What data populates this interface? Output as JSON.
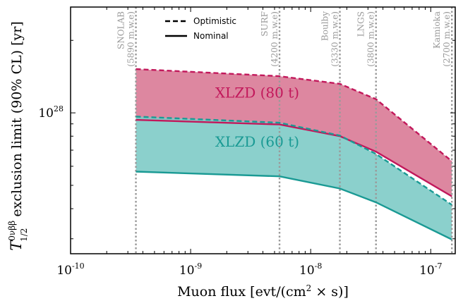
{
  "chart_data": {
    "type": "area",
    "x_scale": "log",
    "y_scale": "log",
    "xlim": [
      1e-10,
      1.6e-07
    ],
    "ylim": [
      2.6e+27,
      2.75e+28
    ],
    "xlabel_html": "Muon flux [evt/(cm<tspan baseline-shift='super' font-size='12'>2</tspan> × s)]",
    "xlabel": "Muon flux [evt/(cm2 × s)]",
    "ylabel": "exclusion limit (90% CL) [yr]",
    "ylabel_symbol": "T",
    "ylabel_sub": "1/2",
    "ylabel_sup": "0νββ",
    "x_ticks": [
      {
        "value": 1e-10,
        "base": "10",
        "exp": "-10"
      },
      {
        "value": 1e-09,
        "base": "10",
        "exp": "-9"
      },
      {
        "value": 1e-08,
        "base": "10",
        "exp": "-8"
      },
      {
        "value": 1e-07,
        "base": "10",
        "exp": "-7"
      }
    ],
    "y_ticks": [
      {
        "value": 1e+28,
        "base": "10",
        "exp": "28"
      }
    ],
    "labs": [
      {
        "name": "SNOLAB",
        "depth": "(5890 m.w.e)",
        "flux": 3.5e-10
      },
      {
        "name": "SURF",
        "depth": "(4200 m.w.e)",
        "flux": 5.5e-09
      },
      {
        "name": "Boulby",
        "depth": "(3330 m.w.e)",
        "flux": 1.75e-08
      },
      {
        "name": "LNGS",
        "depth": "(3800 m.w.e)",
        "flux": 3.5e-08
      },
      {
        "name": "Kamioka",
        "depth": "(2700 m.w.e)",
        "flux": 1.5e-07
      }
    ],
    "series": [
      {
        "name": "XLZD (80 t)",
        "color": "#c2185b",
        "fill": "#d97a96",
        "x": [
          3.5e-10,
          5.5e-09,
          1.75e-08,
          3.5e-08,
          1.5e-07
        ],
        "optimistic": [
          1.52e+28,
          1.42e+28,
          1.32e+28,
          1.14e+28,
          6.3e+27
        ],
        "nominal": [
          9.35e+27,
          8.95e+27,
          8e+27,
          6.9e+27,
          4.5e+27
        ]
      },
      {
        "name": "XLZD (60 t)",
        "color": "#1a9a94",
        "fill": "#7ecbc7",
        "x": [
          3.5e-10,
          5.5e-09,
          1.75e-08,
          3.5e-08,
          1.5e-07
        ],
        "optimistic": [
          9.65e+27,
          9.1e+27,
          8.05e+27,
          6.75e+27,
          4.15e+27
        ],
        "nominal": [
          5.7e+27,
          5.45e+27,
          4.85e+27,
          4.25e+27,
          2.98e+27
        ]
      }
    ],
    "band_labels": [
      {
        "text": "XLZD (80 t)",
        "x": 1.6e-09,
        "y": 1.155e+28
      },
      {
        "text": "XLZD (60 t)",
        "x": 1.6e-09,
        "y": 7.25e+27
      }
    ],
    "legend": {
      "position": "top-center",
      "items": [
        {
          "label": "Optimistic",
          "style": "dashed"
        },
        {
          "label": "Nominal",
          "style": "solid"
        }
      ]
    },
    "grid": false
  }
}
